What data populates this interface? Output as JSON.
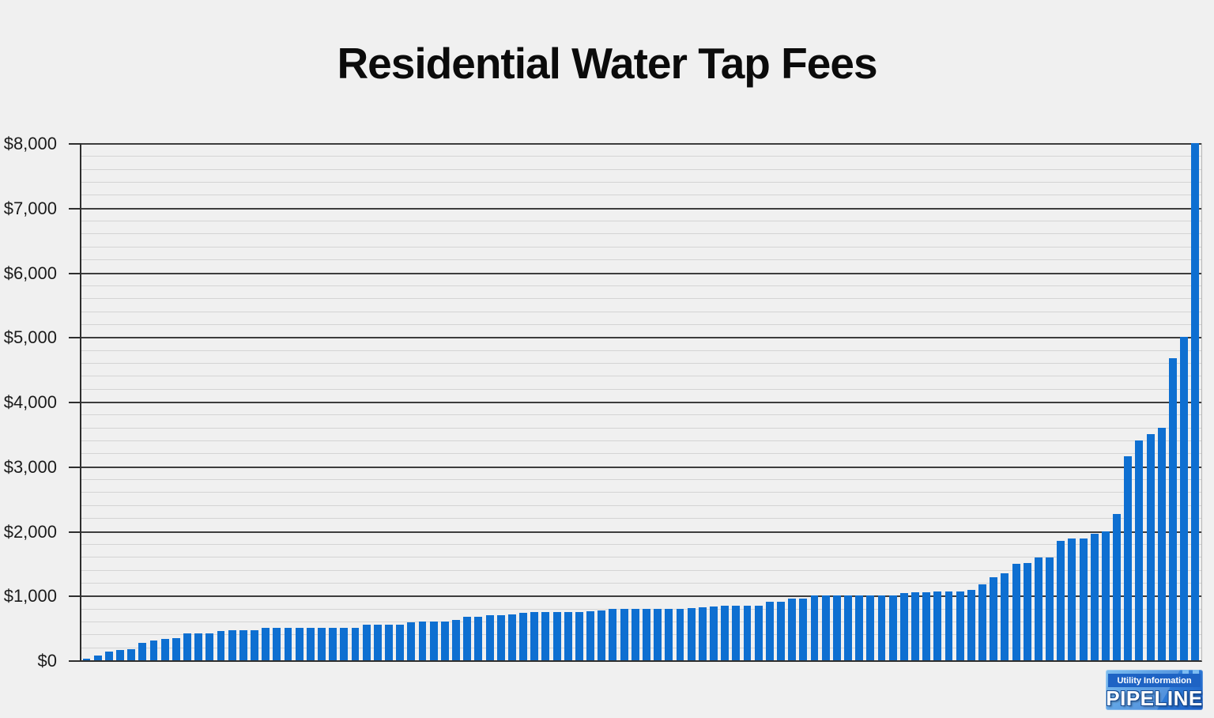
{
  "page": {
    "background_color": "#f0f0f0"
  },
  "title": "Residential Water Tap Fees",
  "chart_data": {
    "type": "bar",
    "title": "Residential Water Tap Fees",
    "xlabel": "",
    "ylabel": "",
    "x_axis_labels_shown": false,
    "ylim": [
      0,
      8000
    ],
    "y_major_interval": 1000,
    "y_minor_interval": 200,
    "grid": true,
    "legend_position": "none",
    "bar_color": "#0e6fd1",
    "major_gridline_color": "#3d3d3d",
    "minor_gridline_color": "#d4d4d4",
    "y_tick_labels": [
      "$0",
      "$1,000",
      "$2,000",
      "$3,000",
      "$4,000",
      "$5,000",
      "$6,000",
      "$7,000",
      "$8,000"
    ],
    "values": [
      20,
      75,
      130,
      165,
      170,
      275,
      305,
      325,
      345,
      410,
      410,
      420,
      450,
      460,
      460,
      460,
      500,
      500,
      500,
      500,
      500,
      500,
      500,
      500,
      500,
      545,
      550,
      550,
      550,
      590,
      600,
      600,
      600,
      620,
      675,
      675,
      700,
      700,
      710,
      730,
      750,
      750,
      750,
      750,
      750,
      760,
      770,
      790,
      800,
      800,
      800,
      800,
      800,
      800,
      810,
      820,
      830,
      850,
      850,
      850,
      850,
      900,
      900,
      950,
      950,
      1000,
      1000,
      1000,
      1000,
      1000,
      1000,
      1000,
      1000,
      1040,
      1050,
      1050,
      1060,
      1060,
      1070,
      1090,
      1170,
      1290,
      1340,
      1490,
      1500,
      1590,
      1590,
      1850,
      1890,
      1890,
      1960,
      2000,
      2260,
      3160,
      3400,
      3500,
      3600,
      4670,
      5000,
      8000
    ]
  },
  "logo": {
    "line1": "Utility Information",
    "line2": "PIPELINE",
    "body_color_top": "#63b0ec",
    "body_color_bottom": "#1a5ec6",
    "band_color": "#1e63c4",
    "text_color": "#ffffff"
  }
}
